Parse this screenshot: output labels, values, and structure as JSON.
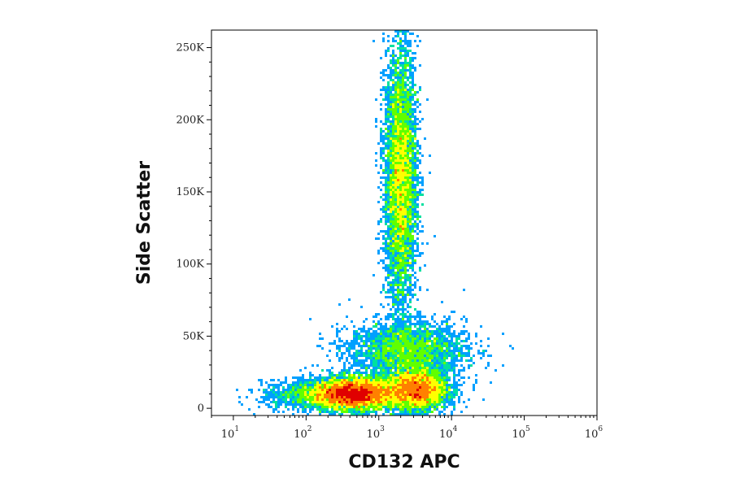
{
  "chart_data": {
    "type": "scatter",
    "subtype": "flow-cytometry-density-dot-plot",
    "xlabel": "CD132 APC",
    "ylabel": "Side Scatter",
    "x_scale": "log",
    "xlim": [
      5,
      1000000
    ],
    "ylim": [
      -5000,
      262144
    ],
    "x_ticks": [
      {
        "base": "10",
        "exp": "1",
        "value": 10
      },
      {
        "base": "10",
        "exp": "2",
        "value": 100
      },
      {
        "base": "10",
        "exp": "3",
        "value": 1000
      },
      {
        "base": "10",
        "exp": "4",
        "value": 10000
      },
      {
        "base": "10",
        "exp": "5",
        "value": 100000
      },
      {
        "base": "10",
        "exp": "6",
        "value": 1000000
      }
    ],
    "y_ticks": [
      {
        "label": "0",
        "value": 0
      },
      {
        "label": "50K",
        "value": 50000
      },
      {
        "label": "100K",
        "value": 100000
      },
      {
        "label": "150K",
        "value": 150000
      },
      {
        "label": "200K",
        "value": 200000
      },
      {
        "label": "250K",
        "value": 250000
      }
    ],
    "grid": false,
    "legend": "none",
    "color_scale": [
      "#0000c8",
      "#00a0ff",
      "#00e0a0",
      "#60ff00",
      "#ffff00",
      "#ff8000",
      "#e00000"
    ],
    "populations": [
      {
        "x_center": 450,
        "y_center": 10000,
        "x_spread_log": 0.28,
        "y_spread": 5500,
        "weight": 0.34
      },
      {
        "x_center": 3200,
        "y_center": 13000,
        "x_spread_log": 0.22,
        "y_spread": 7000,
        "weight": 0.22
      },
      {
        "x_center": 2000,
        "y_center": 160000,
        "x_spread_log": 0.11,
        "y_spread": 45000,
        "weight": 0.28
      },
      {
        "x_center": 2500,
        "y_center": 40000,
        "x_spread_log": 0.4,
        "y_spread": 10000,
        "weight": 0.12
      },
      {
        "x_center": 120,
        "y_center": 9000,
        "x_spread_log": 0.35,
        "y_spread": 5000,
        "weight": 0.04
      }
    ]
  }
}
